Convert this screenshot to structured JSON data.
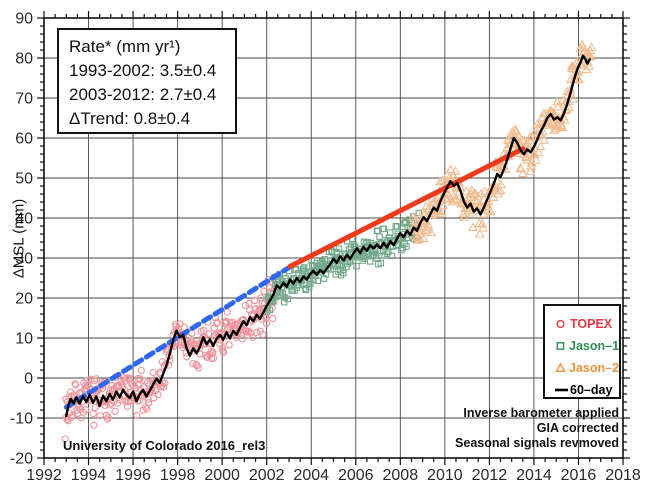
{
  "chart_data": {
    "type": "scatter",
    "title": "",
    "xlabel": "",
    "ylabel": "ΔMSL (mm)",
    "xlim": [
      1992,
      2018
    ],
    "ylim": [
      -20,
      90
    ],
    "grid": true,
    "x_ticks": [
      1992,
      1994,
      1996,
      1998,
      2000,
      2002,
      2004,
      2006,
      2008,
      2010,
      2012,
      2014,
      2016,
      2018
    ],
    "y_ticks": [
      -20,
      -10,
      0,
      10,
      20,
      30,
      40,
      50,
      60,
      70,
      80,
      90
    ],
    "x_minor_step": 0.5,
    "y_minor_step": 2,
    "grid_color": "#474747",
    "frame_color": "#111111",
    "tick_label_color": "#2b2b2b",
    "rate_box": {
      "lines": [
        "Rate* (mm yr¹)",
        "1993-2002: 3.5±0.4",
        "2003-2012: 2.7±0.4",
        "ΔTrend: 0.8±0.4"
      ]
    },
    "legend": {
      "position": "lower right",
      "items": [
        {
          "label": "TOPEX",
          "marker": "circle",
          "color": "#e73740"
        },
        {
          "label": "Jason–1",
          "marker": "square",
          "color": "#2f8f55"
        },
        {
          "label": "Jason–2",
          "marker": "triangle",
          "color": "#f5913d"
        },
        {
          "label": "60–day",
          "marker": "line",
          "color": "#000000"
        }
      ]
    },
    "annotations": [
      "Inverse barometer applied",
      "GIA corrected",
      "Seasonal signals revmoved"
    ],
    "credit": "University of Colorado 2016_rel3",
    "scatter_series": [
      {
        "name": "TOPEX",
        "marker": "circle",
        "color": "#f0949b",
        "start": 1992.95,
        "end": 2002.45,
        "step": 0.028,
        "noise": 6.2,
        "seed": 7
      },
      {
        "name": "Jason-1",
        "marker": "square",
        "color": "#74a98c",
        "start": 2002.0,
        "end": 2008.85,
        "step": 0.028,
        "noise": 4.9,
        "seed": 21
      },
      {
        "name": "Jason-2",
        "marker": "triangle",
        "color": "#f3bd92",
        "start": 2008.55,
        "end": 2016.6,
        "step": 0.028,
        "noise": 5.8,
        "seed": 42
      }
    ],
    "trend_lines": [
      {
        "name": "trend-1993-2002",
        "color": "#2f66f2",
        "style": "dashed",
        "width": 5,
        "points": [
          [
            1993.0,
            -7.3
          ],
          [
            2003.0,
            27.6
          ]
        ]
      },
      {
        "name": "trend-2003-2012",
        "color": "#f03a1c",
        "style": "solid",
        "width": 5,
        "points": [
          [
            2003.05,
            27.9
          ],
          [
            2013.5,
            57.3
          ]
        ]
      }
    ],
    "sixty_day_line": {
      "name": "60-day",
      "color": "#000000",
      "width": 2.4,
      "points": [
        [
          1993.0,
          -9.5
        ],
        [
          1993.08,
          -7.2
        ],
        [
          1993.2,
          -5.2
        ],
        [
          1993.33,
          -6.3
        ],
        [
          1993.45,
          -4.8
        ],
        [
          1993.6,
          -6.4
        ],
        [
          1993.75,
          -4.6
        ],
        [
          1993.9,
          -6.0
        ],
        [
          1994.05,
          -4.2
        ],
        [
          1994.2,
          -6.2
        ],
        [
          1994.35,
          -4.6
        ],
        [
          1994.5,
          -7.0
        ],
        [
          1994.65,
          -4.4
        ],
        [
          1994.8,
          -5.8
        ],
        [
          1994.95,
          -4.0
        ],
        [
          1995.1,
          -5.4
        ],
        [
          1995.25,
          -3.4
        ],
        [
          1995.4,
          -4.9
        ],
        [
          1995.55,
          -2.9
        ],
        [
          1995.7,
          -4.2
        ],
        [
          1995.85,
          -5.0
        ],
        [
          1996.0,
          -3.4
        ],
        [
          1996.15,
          -5.8
        ],
        [
          1996.3,
          -4.0
        ],
        [
          1996.45,
          -3.0
        ],
        [
          1996.6,
          -4.6
        ],
        [
          1996.75,
          -3.2
        ],
        [
          1996.9,
          -1.6
        ],
        [
          1997.05,
          -0.2
        ],
        [
          1997.2,
          -1.2
        ],
        [
          1997.35,
          1.0
        ],
        [
          1997.5,
          3.2
        ],
        [
          1997.65,
          6.0
        ],
        [
          1997.8,
          9.5
        ],
        [
          1997.95,
          11.8
        ],
        [
          1998.1,
          10.2
        ],
        [
          1998.25,
          10.8
        ],
        [
          1998.4,
          7.5
        ],
        [
          1998.55,
          5.6
        ],
        [
          1998.7,
          7.4
        ],
        [
          1998.85,
          6.2
        ],
        [
          1999.0,
          7.8
        ],
        [
          1999.15,
          10.2
        ],
        [
          1999.3,
          8.4
        ],
        [
          1999.45,
          9.6
        ],
        [
          1999.6,
          8.0
        ],
        [
          1999.75,
          9.8
        ],
        [
          1999.9,
          10.8
        ],
        [
          2000.05,
          9.6
        ],
        [
          2000.2,
          11.4
        ],
        [
          2000.35,
          9.9
        ],
        [
          2000.5,
          11.8
        ],
        [
          2000.65,
          10.8
        ],
        [
          2000.8,
          12.6
        ],
        [
          2000.95,
          14.2
        ],
        [
          2001.1,
          13.2
        ],
        [
          2001.25,
          15.2
        ],
        [
          2001.4,
          14.2
        ],
        [
          2001.55,
          15.8
        ],
        [
          2001.7,
          14.8
        ],
        [
          2001.85,
          16.4
        ],
        [
          2002.0,
          18.0
        ],
        [
          2002.15,
          19.4
        ],
        [
          2002.3,
          20.8
        ],
        [
          2002.45,
          23.2
        ],
        [
          2002.6,
          22.4
        ],
        [
          2002.75,
          23.8
        ],
        [
          2002.9,
          22.8
        ],
        [
          2003.05,
          24.6
        ],
        [
          2003.2,
          23.6
        ],
        [
          2003.35,
          25.0
        ],
        [
          2003.5,
          24.0
        ],
        [
          2003.65,
          25.4
        ],
        [
          2003.8,
          24.6
        ],
        [
          2003.95,
          26.0
        ],
        [
          2004.1,
          26.8
        ],
        [
          2004.25,
          25.8
        ],
        [
          2004.4,
          27.0
        ],
        [
          2004.55,
          26.2
        ],
        [
          2004.7,
          27.4
        ],
        [
          2004.85,
          28.4
        ],
        [
          2005.0,
          29.8
        ],
        [
          2005.15,
          28.8
        ],
        [
          2005.3,
          30.4
        ],
        [
          2005.45,
          29.4
        ],
        [
          2005.6,
          30.8
        ],
        [
          2005.75,
          29.8
        ],
        [
          2005.9,
          31.2
        ],
        [
          2006.05,
          32.4
        ],
        [
          2006.2,
          31.2
        ],
        [
          2006.35,
          32.8
        ],
        [
          2006.5,
          31.8
        ],
        [
          2006.65,
          33.2
        ],
        [
          2006.8,
          32.4
        ],
        [
          2006.95,
          33.4
        ],
        [
          2007.1,
          32.4
        ],
        [
          2007.25,
          33.8
        ],
        [
          2007.4,
          32.6
        ],
        [
          2007.55,
          34.2
        ],
        [
          2007.7,
          33.2
        ],
        [
          2007.85,
          34.8
        ],
        [
          2008.0,
          36.2
        ],
        [
          2008.15,
          35.2
        ],
        [
          2008.3,
          36.8
        ],
        [
          2008.45,
          35.8
        ],
        [
          2008.6,
          37.6
        ],
        [
          2008.75,
          36.8
        ],
        [
          2008.9,
          38.8
        ],
        [
          2009.05,
          40.2
        ],
        [
          2009.2,
          39.2
        ],
        [
          2009.35,
          41.0
        ],
        [
          2009.5,
          42.6
        ],
        [
          2009.65,
          41.8
        ],
        [
          2009.8,
          44.2
        ],
        [
          2009.95,
          46.0
        ],
        [
          2010.1,
          47.6
        ],
        [
          2010.25,
          49.2
        ],
        [
          2010.4,
          48.0
        ],
        [
          2010.55,
          48.8
        ],
        [
          2010.7,
          46.8
        ],
        [
          2010.85,
          44.2
        ],
        [
          2011.0,
          42.6
        ],
        [
          2011.15,
          43.6
        ],
        [
          2011.3,
          41.6
        ],
        [
          2011.45,
          42.4
        ],
        [
          2011.6,
          40.9
        ],
        [
          2011.75,
          42.6
        ],
        [
          2011.9,
          44.6
        ],
        [
          2012.05,
          46.6
        ],
        [
          2012.2,
          48.6
        ],
        [
          2012.35,
          51.0
        ],
        [
          2012.5,
          50.2
        ],
        [
          2012.65,
          52.2
        ],
        [
          2012.8,
          54.6
        ],
        [
          2012.95,
          57.4
        ],
        [
          2013.1,
          60.0
        ],
        [
          2013.25,
          58.8
        ],
        [
          2013.4,
          57.0
        ],
        [
          2013.55,
          55.9
        ],
        [
          2013.7,
          57.2
        ],
        [
          2013.85,
          56.4
        ],
        [
          2014.0,
          57.8
        ],
        [
          2014.15,
          59.6
        ],
        [
          2014.3,
          61.6
        ],
        [
          2014.45,
          63.2
        ],
        [
          2014.6,
          65.0
        ],
        [
          2014.75,
          66.0
        ],
        [
          2014.9,
          64.6
        ],
        [
          2015.05,
          65.2
        ],
        [
          2015.2,
          64.4
        ],
        [
          2015.35,
          66.2
        ],
        [
          2015.5,
          68.6
        ],
        [
          2015.65,
          71.4
        ],
        [
          2015.8,
          74.6
        ],
        [
          2015.95,
          77.2
        ],
        [
          2016.1,
          79.0
        ],
        [
          2016.2,
          80.6
        ],
        [
          2016.3,
          79.8
        ],
        [
          2016.4,
          78.6
        ],
        [
          2016.5,
          79.6
        ]
      ]
    }
  }
}
